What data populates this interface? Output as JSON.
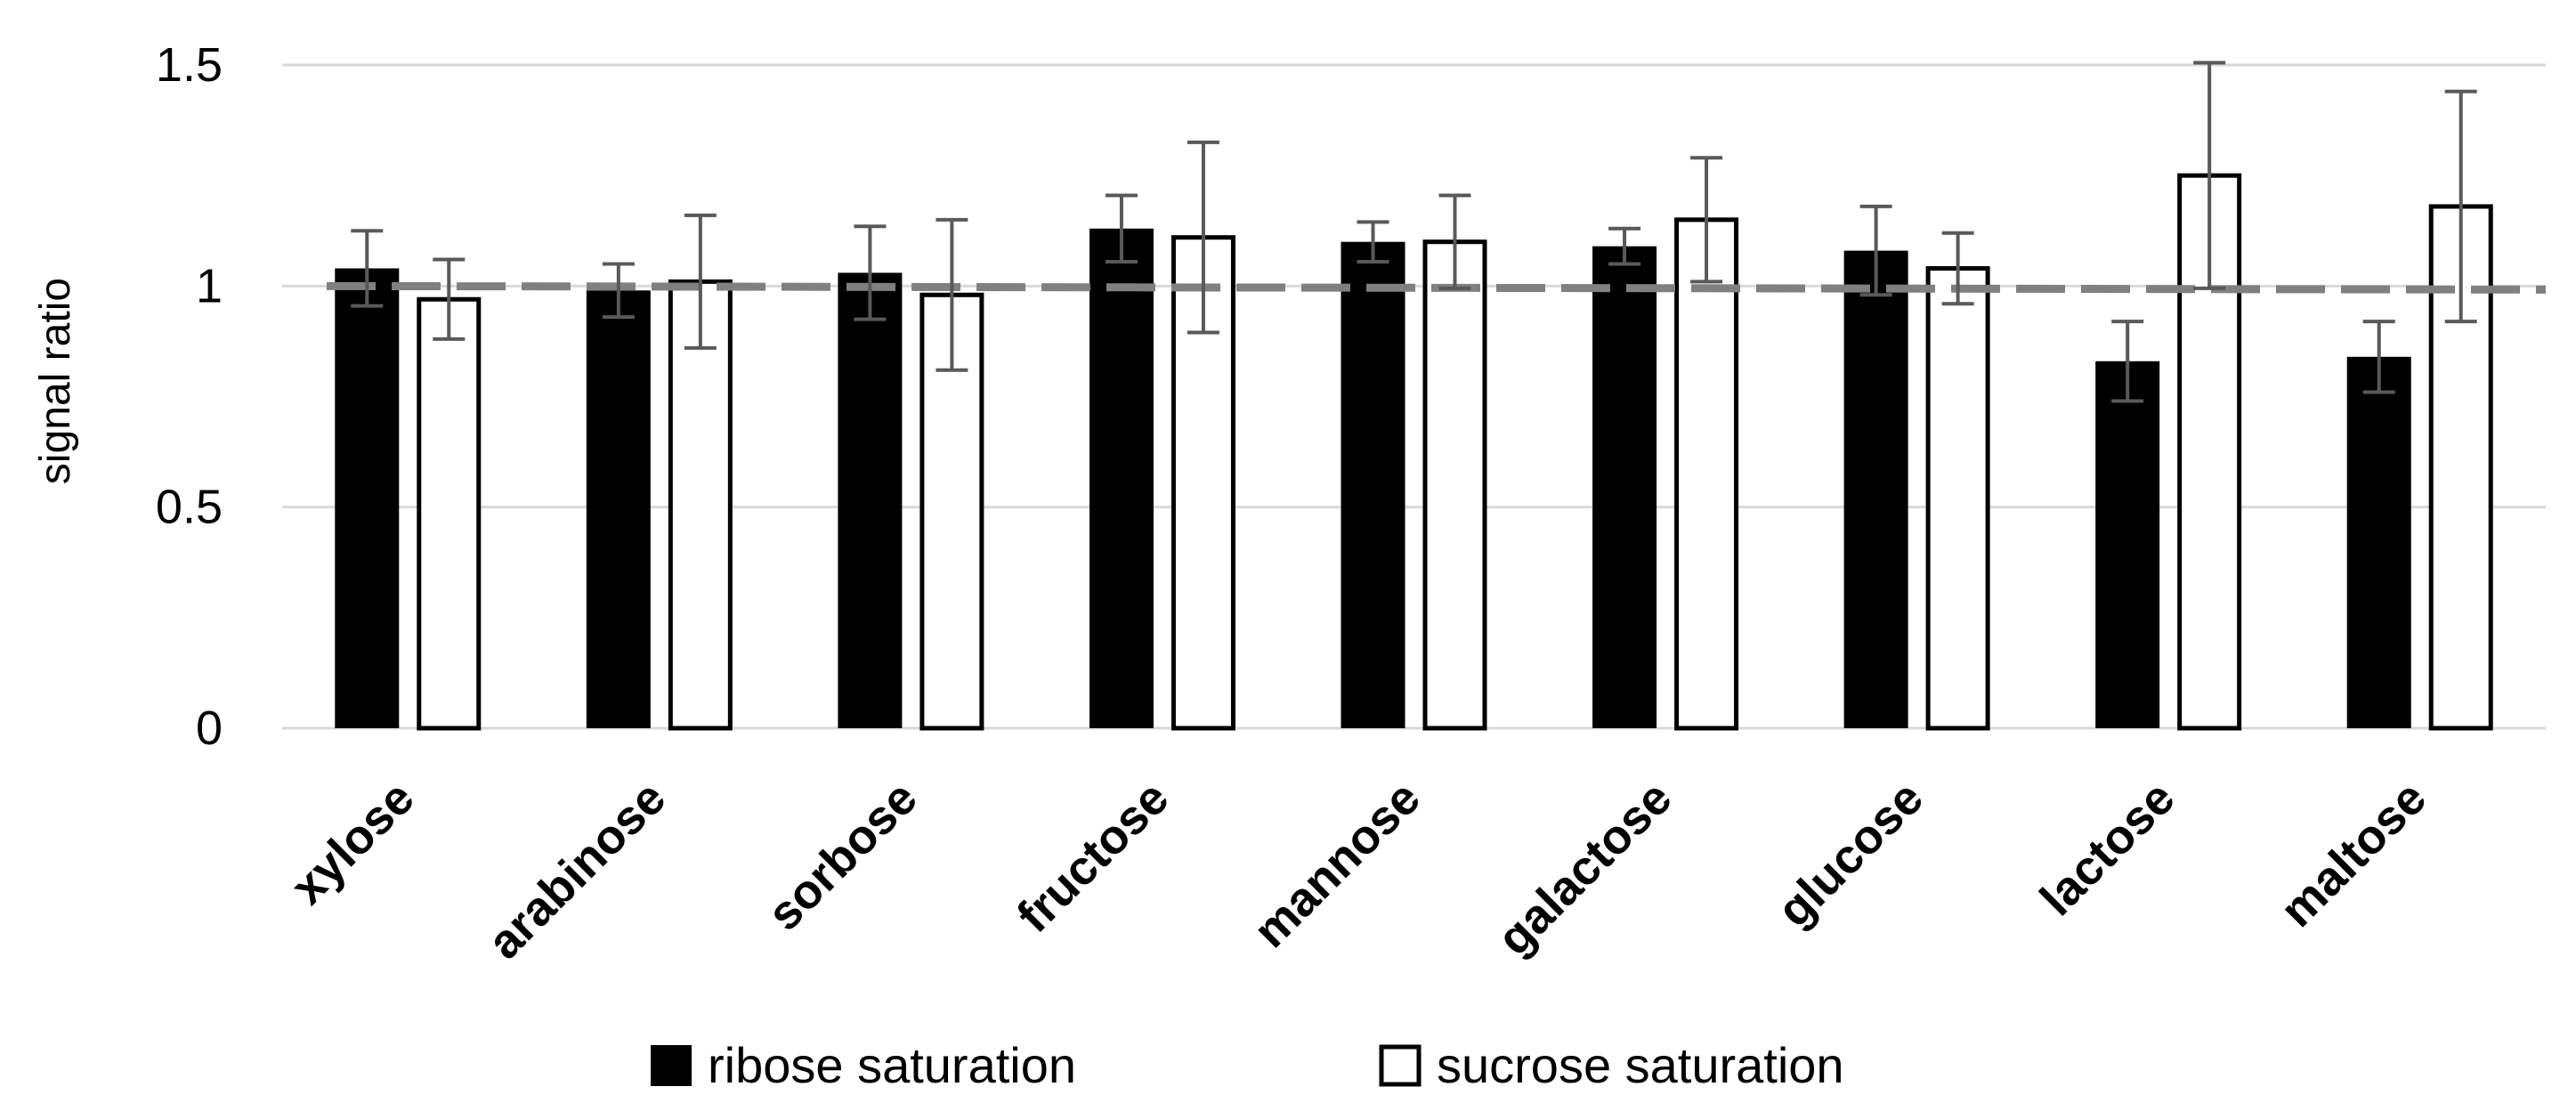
{
  "chart_data": {
    "type": "bar",
    "title": "",
    "xlabel": "",
    "ylabel": "signal ratio",
    "ylim": [
      0,
      1.5
    ],
    "yticks": [
      0,
      0.5,
      1,
      1.5
    ],
    "ytick_labels": [
      "0",
      "0.5",
      "1",
      "1.5"
    ],
    "grid": true,
    "reference_line": {
      "y": 1,
      "style": "dashed"
    },
    "legend_position": "bottom-center",
    "categories": [
      "xylose",
      "arabinose",
      "sorbose",
      "fructose",
      "mannose",
      "galactose",
      "glucose",
      "lactose",
      "maltose"
    ],
    "series": [
      {
        "name": "ribose saturation",
        "color": "#000000",
        "fill": "solid",
        "values": [
          1.04,
          0.99,
          1.03,
          1.13,
          1.1,
          1.09,
          1.08,
          0.83,
          0.84
        ],
        "errors": [
          0.085,
          0.06,
          0.105,
          0.075,
          0.045,
          0.04,
          0.1,
          0.09,
          0.08
        ]
      },
      {
        "name": "sucrose saturation",
        "color": "#ffffff",
        "fill": "outline",
        "values": [
          0.97,
          1.01,
          0.98,
          1.11,
          1.1,
          1.15,
          1.04,
          1.25,
          1.18
        ],
        "errors": [
          0.09,
          0.15,
          0.17,
          0.215,
          0.105,
          0.14,
          0.08,
          0.255,
          0.26
        ]
      }
    ]
  }
}
